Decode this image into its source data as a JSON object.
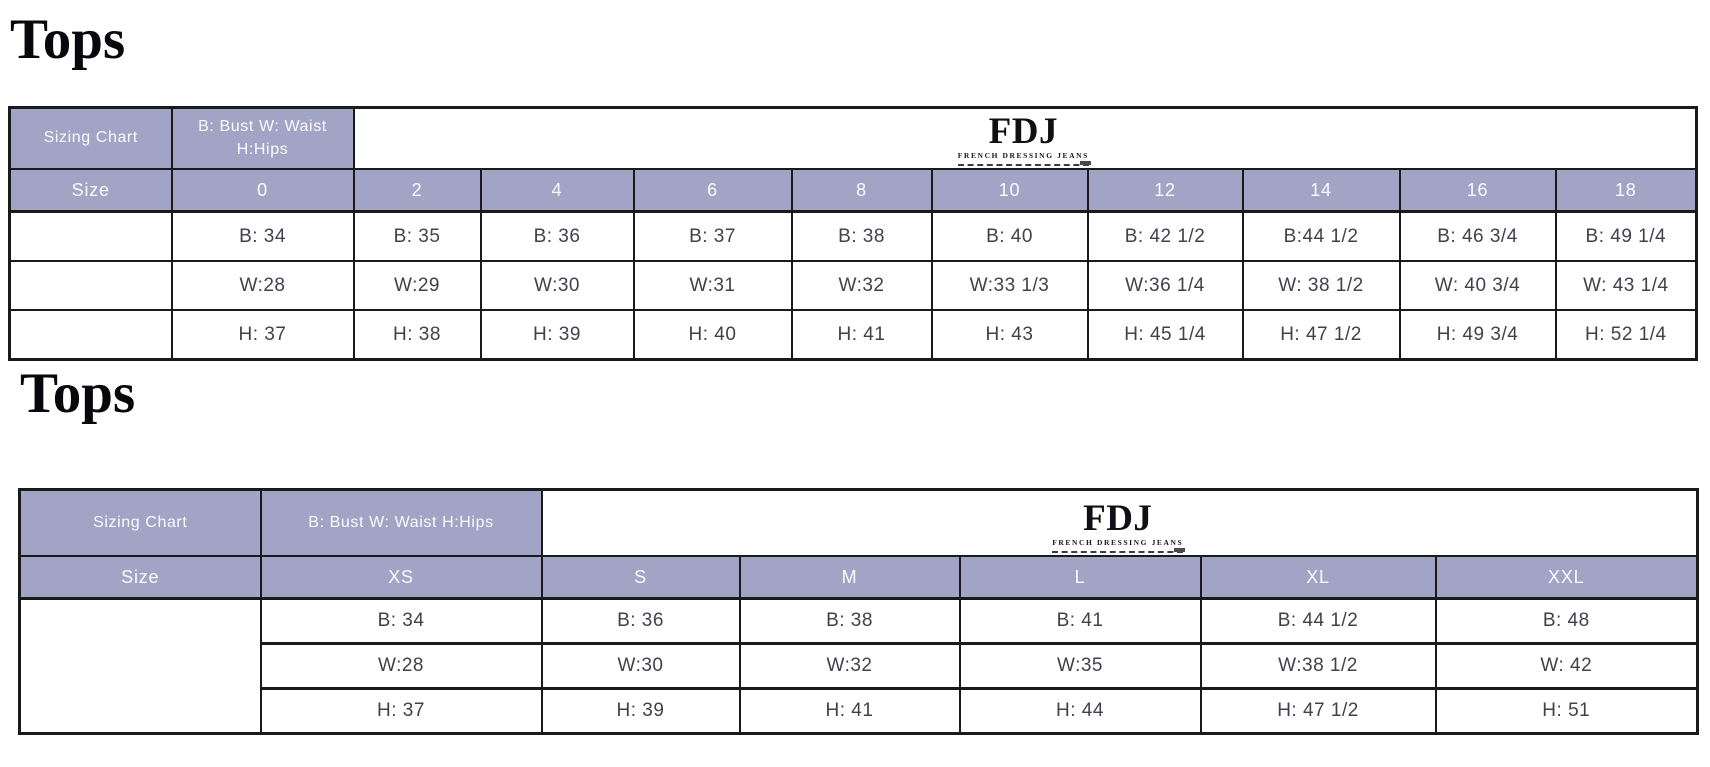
{
  "colors": {
    "header_bg": "#a1a4c4",
    "header_text": "#fbfbfd",
    "body_text": "#41414b",
    "border": "#1a1a1a",
    "title_text": "#08080c",
    "logo_text": "#101014"
  },
  "brand": {
    "wordmark": "FDJ",
    "tagline": "FRENCH DRESSING JEANS"
  },
  "tables": [
    {
      "title": "Tops",
      "header": {
        "corner": "Sizing Chart",
        "legend": "B: Bust W: Waist H:Hips"
      },
      "size_row_label": "Size",
      "sizes": [
        "0",
        "2",
        "4",
        "6",
        "8",
        "10",
        "12",
        "14",
        "16",
        "18"
      ],
      "measurement_rows": [
        [
          "B: 34",
          "B: 35",
          "B: 36",
          "B: 37",
          "B: 38",
          "B: 40",
          "B: 42 1/2",
          "B:44 1/2",
          "B: 46 3/4",
          "B: 49 1/4"
        ],
        [
          "W:28",
          "W:29",
          "W:30",
          "W:31",
          "W:32",
          "W:33 1/3",
          "W:36 1/4",
          "W: 38 1/2",
          "W: 40 3/4",
          "W: 43 1/4"
        ],
        [
          "H: 37",
          "H: 38",
          "H: 39",
          "H: 40",
          "H: 41",
          "H: 43",
          "H: 45 1/4",
          "H: 47 1/2",
          "H: 49 3/4",
          "H: 52 1/4"
        ]
      ]
    },
    {
      "title": "Tops",
      "header": {
        "corner": "Sizing Chart",
        "legend": "B: Bust W: Waist H:Hips"
      },
      "size_row_label": "Size",
      "sizes": [
        "XS",
        "S",
        "M",
        "L",
        "XL",
        "XXL"
      ],
      "measurement_rows": [
        [
          "B: 34",
          "B: 36",
          "B: 38",
          "B: 41",
          "B: 44 1/2",
          "B: 48"
        ],
        [
          "W:28",
          "W:30",
          "W:32",
          "W:35",
          "W:38 1/2",
          "W: 42"
        ],
        [
          "H: 37",
          "H: 39",
          "H: 41",
          "H: 44",
          "H: 47 1/2",
          "H: 51"
        ]
      ]
    }
  ]
}
